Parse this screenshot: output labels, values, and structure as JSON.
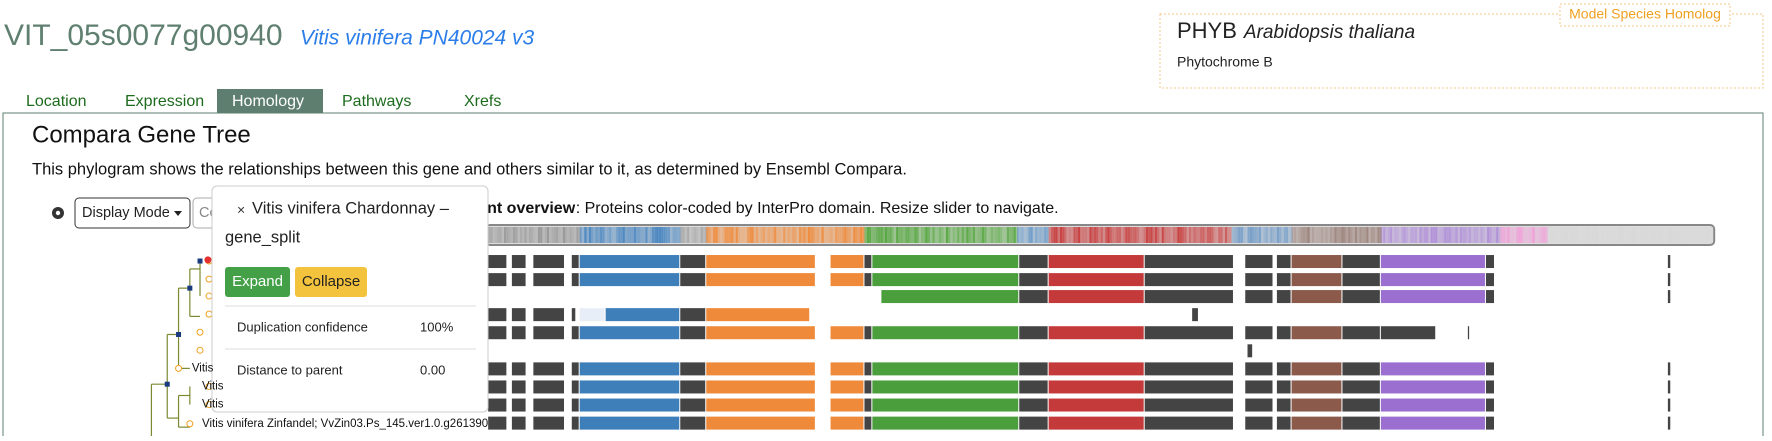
{
  "header": {
    "gene_id": "VIT_05s0077g00940",
    "genome": "Vitis vinifera PN40024 v3"
  },
  "homolog": {
    "badge": "Model Species Homolog",
    "symbol": "PHYB",
    "species": "Arabidopsis thaliana",
    "description": "Phytochrome B"
  },
  "tabs": [
    "Location",
    "Expression",
    "Homology",
    "Pathways",
    "Xrefs"
  ],
  "panel": {
    "title": "Compara Gene Tree",
    "description": "This phylogram shows the relationships between this gene and others similar to it, as determined by Ensembl Compara."
  },
  "toolbar": {
    "display_mode": "Display Mode",
    "search": "Co",
    "overview_title": "Alignment overview",
    "overview_text": ": Proteins color-coded by InterPro domain. Resize slider to navigate."
  },
  "popup": {
    "close": "×",
    "title_line1": "Vitis vinifera Chardonnay –",
    "title_line2": "gene_split",
    "expand": "Expand",
    "collapse": "Collapse",
    "rows": [
      [
        "Duplication confidence",
        "100%"
      ],
      [
        "Distance to parent",
        "0.00"
      ]
    ]
  },
  "tree": {
    "leaves": [
      "Vitis",
      "Vitis",
      "Vitis",
      "Vitis vinifera Zinfandel; VvZin03.Ps_145.ver1.0.g261390"
    ]
  }
}
